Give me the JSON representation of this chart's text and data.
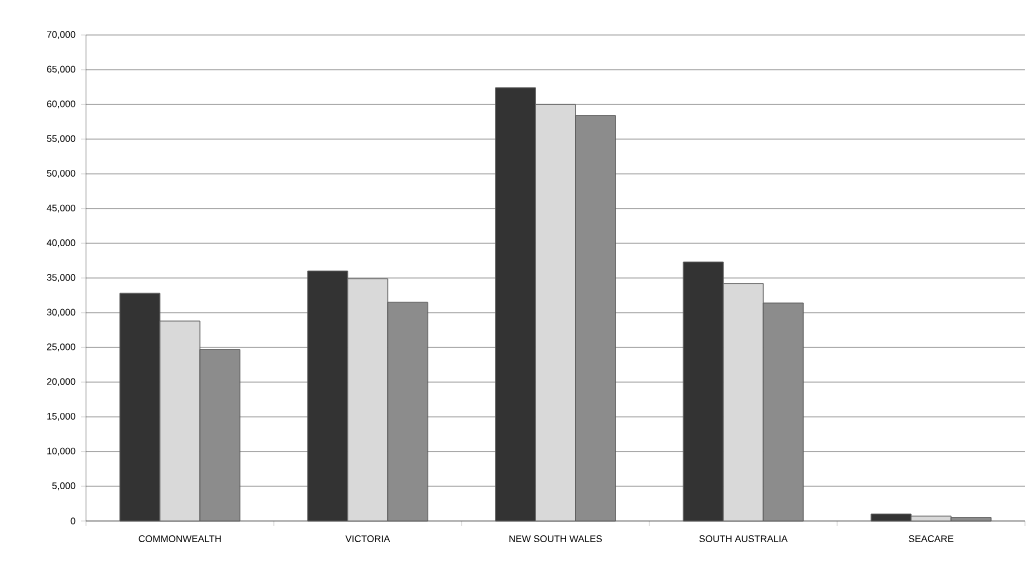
{
  "chart_data": {
    "type": "bar",
    "categories": [
      "COMMONWEALTH",
      "VICTORIA",
      "NEW SOUTH WALES",
      "SOUTH AUSTRALIA",
      "SEACARE"
    ],
    "series": [
      {
        "color": "#333333",
        "values": [
          32800,
          36000,
          62400,
          37300,
          1000
        ]
      },
      {
        "color": "#d9d9d9",
        "values": [
          28800,
          34900,
          60000,
          34200,
          700
        ]
      },
      {
        "color": "#8c8c8c",
        "values": [
          24700,
          31500,
          58400,
          31400,
          500
        ]
      }
    ],
    "ylim": [
      0,
      70000
    ],
    "yticks": [
      {
        "value": 0,
        "label": "0"
      },
      {
        "value": 5000,
        "label": "5,000"
      },
      {
        "value": 10000,
        "label": "10,000"
      },
      {
        "value": 15000,
        "label": "15,000"
      },
      {
        "value": 20000,
        "label": "20,000"
      },
      {
        "value": 25000,
        "label": "25,000"
      },
      {
        "value": 30000,
        "label": "30,000"
      },
      {
        "value": 35000,
        "label": "35,000"
      },
      {
        "value": 40000,
        "label": "40,000"
      },
      {
        "value": 45000,
        "label": "45,000"
      },
      {
        "value": 50000,
        "label": "50,000"
      },
      {
        "value": 55000,
        "label": "55,000"
      },
      {
        "value": 60000,
        "label": "60,000"
      },
      {
        "value": 65000,
        "label": "65,000"
      },
      {
        "value": 70000,
        "label": "70,000"
      }
    ],
    "grid": "y"
  }
}
